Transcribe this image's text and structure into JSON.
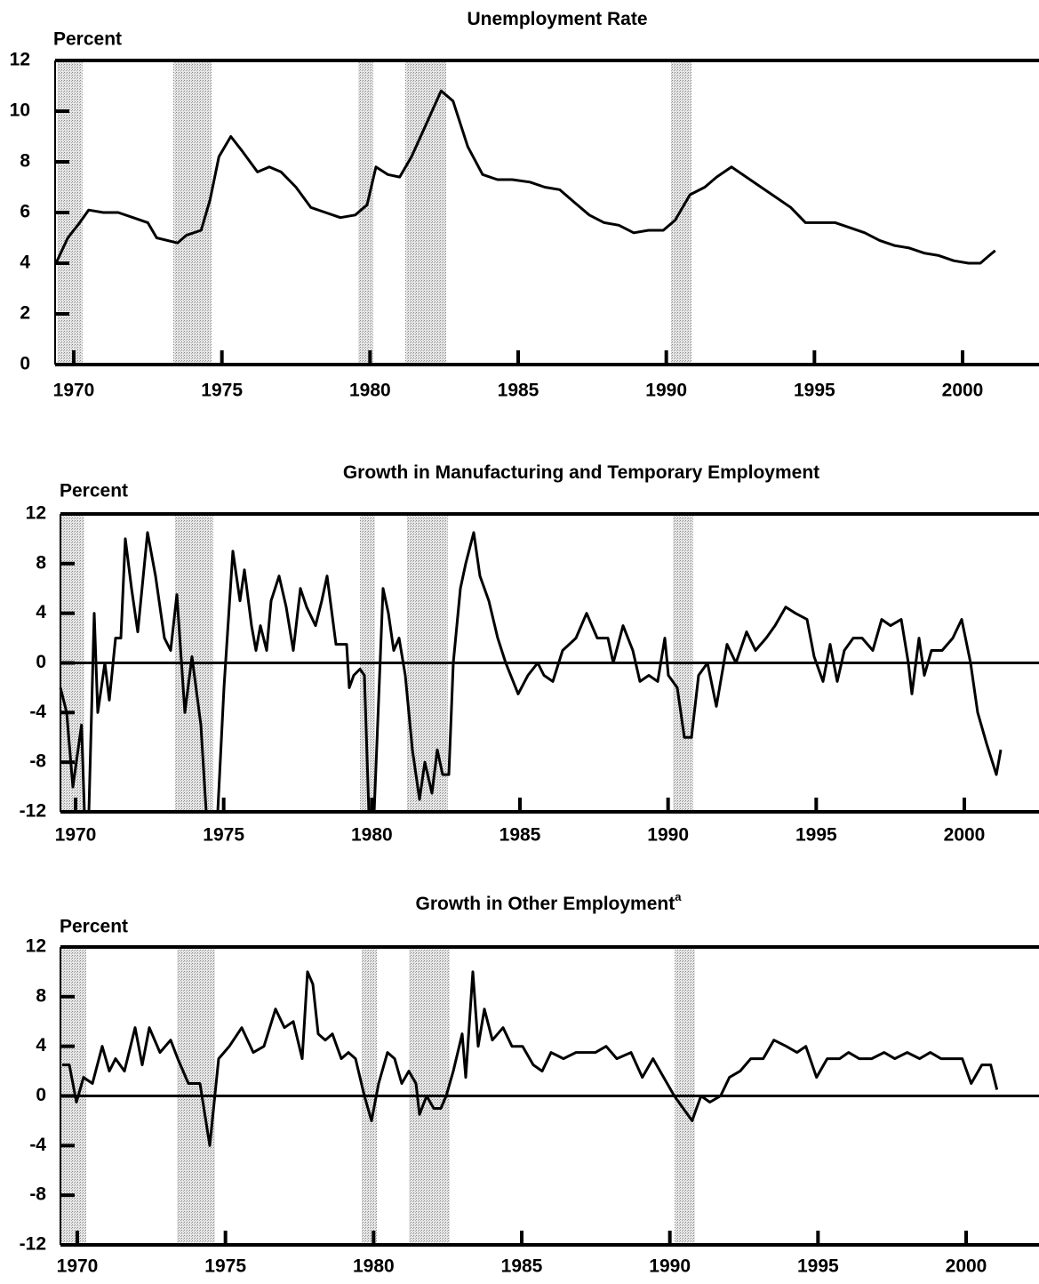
{
  "chart_data": [
    {
      "type": "line",
      "title": "Unemployment Rate",
      "y_label": "Percent",
      "color": "#000000",
      "xlim": [
        1969.37,
        2002.58
      ],
      "ylim": [
        0,
        12
      ],
      "xticks": [
        1970,
        1975,
        1980,
        1985,
        1990,
        1995,
        2000
      ],
      "yticks": [
        0,
        2,
        4,
        6,
        8,
        10,
        12
      ],
      "shaded_periods": [
        [
          1969.45,
          1970.3
        ],
        [
          1973.36,
          1974.65
        ],
        [
          1979.6,
          1980.11
        ],
        [
          1981.19,
          1982.57
        ],
        [
          1990.16,
          1990.85
        ]
      ],
      "x": [
        1969.4,
        1969.8,
        1970.2,
        1970.5,
        1971,
        1971.5,
        1972,
        1972.5,
        1972.8,
        1973.5,
        1973.8,
        1974.3,
        1974.6,
        1974.9,
        1975.3,
        1975.7,
        1976.2,
        1976.6,
        1977,
        1977.5,
        1978,
        1978.5,
        1979,
        1979.5,
        1979.9,
        1980.2,
        1980.6,
        1981,
        1981.4,
        1981.9,
        1982.4,
        1982.8,
        1983.3,
        1983.8,
        1984.3,
        1984.8,
        1985.4,
        1985.9,
        1986.4,
        1986.9,
        1987.4,
        1987.9,
        1988.4,
        1988.9,
        1989.4,
        1989.9,
        1990.3,
        1990.8,
        1991.3,
        1991.7,
        1992.2,
        1992.7,
        1993.2,
        1993.7,
        1994.2,
        1994.7,
        1995.2,
        1995.7,
        1996.2,
        1996.7,
        1997.2,
        1997.7,
        1998.2,
        1998.7,
        1999.2,
        1999.7,
        2000.2,
        2000.6,
        2000.9,
        2001.1
      ],
      "values": [
        4.0,
        5.0,
        5.6,
        6.1,
        6.0,
        6.0,
        5.8,
        5.6,
        5.0,
        4.8,
        5.1,
        5.3,
        6.5,
        8.2,
        9.0,
        8.4,
        7.6,
        7.8,
        7.6,
        7.0,
        6.2,
        6.0,
        5.8,
        5.9,
        6.3,
        7.8,
        7.5,
        7.4,
        8.2,
        9.5,
        10.8,
        10.4,
        8.6,
        7.5,
        7.3,
        7.3,
        7.2,
        7.0,
        6.9,
        6.4,
        5.9,
        5.6,
        5.5,
        5.2,
        5.3,
        5.3,
        5.7,
        6.7,
        7.0,
        7.4,
        7.8,
        7.4,
        7.0,
        6.6,
        6.2,
        5.6,
        5.6,
        5.6,
        5.4,
        5.2,
        4.9,
        4.7,
        4.6,
        4.4,
        4.3,
        4.1,
        4.0,
        4.0,
        4.3,
        4.5
      ]
    },
    {
      "type": "line",
      "title": "Growth in Manufacturing and Temporary Employment",
      "y_label": "Percent",
      "color": "#000000",
      "xlim": [
        1969.49,
        2002.52
      ],
      "ylim": [
        -12,
        12
      ],
      "xticks": [
        1970,
        1975,
        1980,
        1985,
        1990,
        1995,
        2000
      ],
      "yticks": [
        -12,
        -8,
        -4,
        0,
        4,
        8,
        12
      ],
      "zero_line": true,
      "shaded_periods": [
        [
          1969.49,
          1970.3
        ],
        [
          1973.36,
          1974.65
        ],
        [
          1979.6,
          1980.11
        ],
        [
          1981.19,
          1982.57
        ],
        [
          1990.16,
          1990.85
        ]
      ],
      "x": [
        1969.49,
        1969.7,
        1969.91,
        1970.2,
        1970.3,
        1970.45,
        1970.63,
        1970.75,
        1970.99,
        1971.14,
        1971.35,
        1971.53,
        1971.68,
        1971.89,
        1972.1,
        1972.43,
        1972.7,
        1973.0,
        1973.21,
        1973.42,
        1973.69,
        1973.93,
        1974.23,
        1974.41,
        1974.8,
        1975.01,
        1975.31,
        1975.55,
        1975.7,
        1975.94,
        1976.09,
        1976.24,
        1976.45,
        1976.6,
        1976.87,
        1977.11,
        1977.35,
        1977.59,
        1977.8,
        1978.1,
        1978.31,
        1978.49,
        1978.79,
        1979.15,
        1979.24,
        1979.39,
        1979.6,
        1979.75,
        1979.9,
        1980.08,
        1980.38,
        1980.56,
        1980.74,
        1980.92,
        1981.13,
        1981.37,
        1981.61,
        1981.79,
        1982.03,
        1982.21,
        1982.39,
        1982.6,
        1982.75,
        1982.99,
        1983.17,
        1983.44,
        1983.65,
        1983.95,
        1984.25,
        1984.52,
        1984.94,
        1985.27,
        1985.6,
        1985.81,
        1986.11,
        1986.44,
        1986.89,
        1987.25,
        1987.61,
        1987.97,
        1988.15,
        1988.48,
        1988.81,
        1989.05,
        1989.35,
        1989.65,
        1989.89,
        1990.01,
        1990.31,
        1990.55,
        1990.79,
        1991.03,
        1991.33,
        1991.63,
        1991.99,
        1992.29,
        1992.65,
        1992.95,
        1993.31,
        1993.61,
        1993.97,
        1994.3,
        1994.69,
        1994.93,
        1995.23,
        1995.47,
        1995.71,
        1995.95,
        1996.25,
        1996.55,
        1996.91,
        1997.21,
        1997.51,
        1997.87,
        1998.11,
        1998.23,
        1998.47,
        1998.65,
        1998.89,
        1999.25,
        1999.61,
        1999.91,
        2000.21,
        2000.45,
        2000.75,
        2001.08,
        2001.23
      ],
      "values": [
        -2,
        -4,
        -10,
        -5,
        -12,
        -12,
        4,
        -4,
        0,
        -3,
        2,
        2,
        10,
        6,
        2.5,
        10.5,
        7,
        2,
        1,
        5.5,
        -4,
        0.5,
        -5,
        -12,
        -12,
        -2,
        9,
        5,
        7.5,
        3,
        1,
        3,
        1,
        5,
        7,
        4.5,
        1,
        6,
        4.5,
        3,
        5,
        7,
        1.5,
        1.5,
        -2,
        -1,
        -0.5,
        -1,
        -12,
        -12,
        6,
        4,
        1,
        2,
        -1,
        -7,
        -11,
        -8,
        -10.5,
        -7,
        -9,
        -9,
        0,
        6,
        8,
        10.5,
        7,
        5,
        2,
        0,
        -2.5,
        -1,
        0,
        -1,
        -1.5,
        1,
        2,
        4,
        2,
        2,
        0,
        3,
        1,
        -1.5,
        -1,
        -1.5,
        2,
        -1,
        -2,
        -6,
        -6,
        -1,
        0,
        -3.5,
        1.5,
        0,
        2.5,
        1,
        2,
        3,
        4.5,
        4,
        3.5,
        0.5,
        -1.5,
        1.5,
        -1.5,
        1,
        2,
        2,
        1,
        3.5,
        3,
        3.5,
        0,
        -2.5,
        2,
        -1,
        1,
        1,
        2,
        3.5,
        0,
        -4,
        -6.5,
        -9,
        -7
      ]
    },
    {
      "type": "line",
      "title": "Growth in Other Employment",
      "title_note": "a",
      "y_label": "Percent",
      "color": "#000000",
      "xlim": [
        1969.43,
        2002.46
      ],
      "ylim": [
        -12,
        12
      ],
      "xticks": [
        1970,
        1975,
        1980,
        1985,
        1990,
        1995,
        2000
      ],
      "yticks": [
        -12,
        -8,
        -4,
        0,
        4,
        8,
        12
      ],
      "zero_line": true,
      "shaded_periods": [
        [
          1969.43,
          1970.3
        ],
        [
          1973.36,
          1974.65
        ],
        [
          1979.6,
          1980.11
        ],
        [
          1981.19,
          1982.57
        ],
        [
          1990.16,
          1990.85
        ]
      ],
      "x": [
        1969.49,
        1969.73,
        1969.97,
        1970.21,
        1970.51,
        1970.84,
        1971.08,
        1971.29,
        1971.59,
        1971.95,
        1972.19,
        1972.43,
        1972.79,
        1973.15,
        1973.39,
        1973.75,
        1974.14,
        1974.47,
        1974.77,
        1975.13,
        1975.55,
        1975.94,
        1976.3,
        1976.69,
        1976.99,
        1977.29,
        1977.59,
        1977.77,
        1977.95,
        1978.13,
        1978.37,
        1978.61,
        1978.91,
        1979.15,
        1979.39,
        1979.69,
        1979.93,
        1980.17,
        1980.47,
        1980.71,
        1980.95,
        1981.19,
        1981.43,
        1981.55,
        1981.79,
        1982.03,
        1982.27,
        1982.45,
        1982.69,
        1982.99,
        1983.11,
        1983.35,
        1983.53,
        1983.74,
        1984.01,
        1984.37,
        1984.67,
        1985.03,
        1985.39,
        1985.69,
        1985.99,
        1986.41,
        1986.83,
        1987.19,
        1987.49,
        1987.85,
        1988.21,
        1988.69,
        1989.07,
        1989.43,
        1989.79,
        1990.15,
        1990.45,
        1990.75,
        1991.05,
        1991.35,
        1991.71,
        1992.01,
        1992.37,
        1992.73,
        1993.15,
        1993.51,
        1993.93,
        1994.29,
        1994.59,
        1994.95,
        1995.31,
        1995.73,
        1996.03,
        1996.39,
        1996.81,
        1997.23,
        1997.59,
        1998.01,
        1998.43,
        1998.79,
        1999.15,
        1999.51,
        1999.87,
        2000.17,
        2000.53,
        2000.83,
        2001.04
      ],
      "values": [
        2.5,
        2.5,
        -0.5,
        1.5,
        1,
        4,
        2,
        3,
        2,
        5.5,
        2.5,
        5.5,
        3.5,
        4.5,
        3,
        1,
        1,
        -4,
        3,
        4,
        5.5,
        3.5,
        4,
        7,
        5.5,
        6,
        3,
        10,
        9,
        5,
        4.5,
        5,
        3,
        3.5,
        3,
        0,
        -2,
        1,
        3.5,
        3,
        1,
        2,
        1,
        -1.5,
        0,
        -1,
        -1,
        0,
        2,
        5,
        1.5,
        10,
        4,
        7,
        4.5,
        5.5,
        4,
        4,
        2.5,
        2,
        3.5,
        3,
        3.5,
        3.5,
        3.5,
        4,
        3,
        3.5,
        1.5,
        3,
        1.5,
        0,
        -1,
        -2,
        0,
        -0.5,
        0,
        1.5,
        2,
        3,
        3,
        4.5,
        4,
        3.5,
        4,
        1.5,
        3,
        3,
        3.5,
        3,
        3,
        3.5,
        3,
        3.5,
        3,
        3.5,
        3,
        3,
        3,
        1,
        2.5,
        2.5,
        0.5
      ]
    }
  ]
}
